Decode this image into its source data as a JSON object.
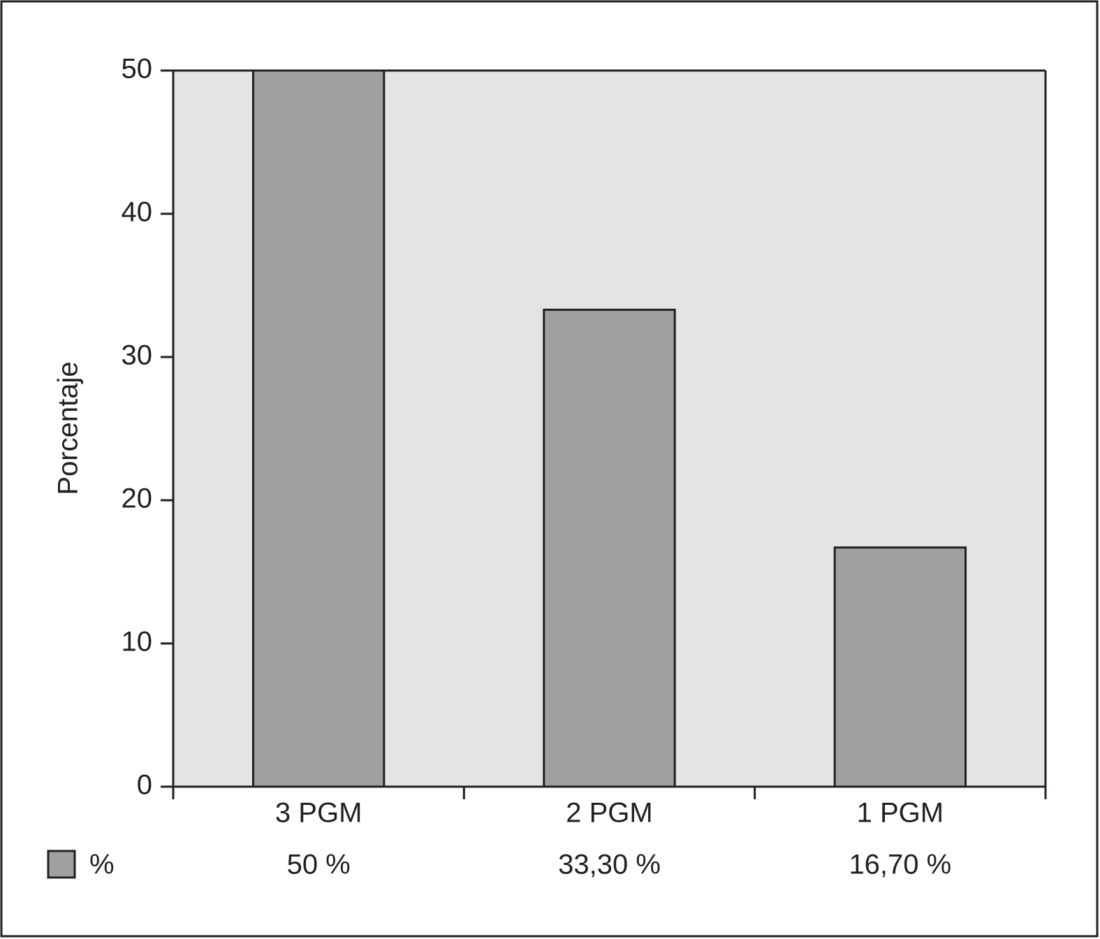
{
  "chart_data": {
    "type": "bar",
    "y_label": "Porcentaje",
    "categories": [
      "3 PGM",
      "2 PGM",
      "1 PGM"
    ],
    "series": [
      {
        "name": "%",
        "color": "#a0a0a0",
        "values": [
          50,
          33.3,
          16.7
        ],
        "value_labels": [
          "50 %",
          "33,30 %",
          "16,70 %"
        ]
      }
    ],
    "ylim": [
      0,
      50
    ],
    "yticks": [
      0,
      10,
      20,
      30,
      40,
      50
    ],
    "plot_background": "#e4e4e4"
  }
}
